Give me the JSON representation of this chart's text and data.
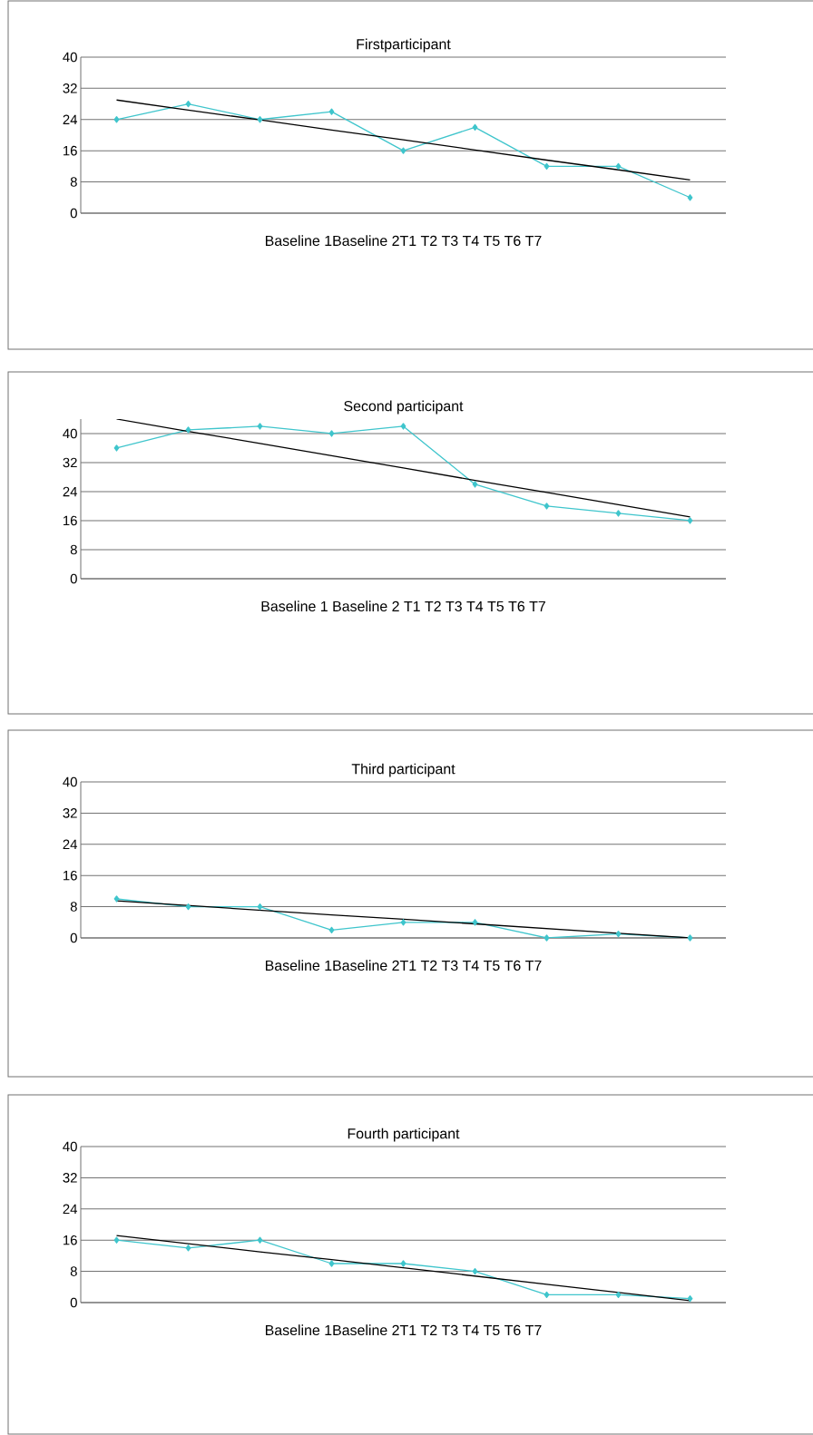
{
  "chart_data": [
    {
      "type": "line",
      "title": "Firstparticipant",
      "xlabel": "Baseline 1Baseline 2T1 T2 T3 T4 T5 T6 T7",
      "categories": [
        null,
        null,
        null,
        null,
        null,
        null,
        null,
        null,
        null
      ],
      "ylim": [
        0,
        40
      ],
      "yticks": [
        0,
        8,
        16,
        24,
        32,
        40
      ],
      "grid": "y",
      "marker": "diamond",
      "series": [
        {
          "color": "#3fc5cc",
          "values": [
            24,
            28,
            24,
            26,
            16,
            22,
            12,
            12,
            4
          ]
        },
        {
          "type": "line",
          "marker": "none",
          "color": "#000000",
          "values": [
            29,
            26.4,
            23.9,
            21.3,
            18.8,
            16.2,
            13.6,
            11.1,
            8.5
          ]
        }
      ]
    },
    {
      "type": "line",
      "title": "Second participant",
      "xlabel": "Baseline 1 Baseline 2 T1 T2 T3 T4 T5 T6 T7",
      "categories": [
        null,
        null,
        null,
        null,
        null,
        null,
        null,
        null,
        null
      ],
      "ylim": [
        0,
        44
      ],
      "yticks": [
        0,
        8,
        16,
        24,
        32,
        40
      ],
      "grid": "y",
      "marker": "diamond",
      "series": [
        {
          "color": "#3fc5cc",
          "values": [
            36,
            41,
            42,
            40,
            42,
            26,
            20,
            18,
            16
          ]
        },
        {
          "type": "line",
          "marker": "none",
          "color": "#000000",
          "values": [
            44,
            40.6,
            37.3,
            33.9,
            30.5,
            27.1,
            23.8,
            20.4,
            17
          ]
        }
      ]
    },
    {
      "type": "line",
      "title": "Third participant",
      "xlabel": "Baseline 1Baseline 2T1 T2 T3 T4 T5 T6 T7",
      "categories": [
        null,
        null,
        null,
        null,
        null,
        null,
        null,
        null,
        null
      ],
      "ylim": [
        0,
        40
      ],
      "yticks": [
        0,
        8,
        16,
        24,
        32,
        40
      ],
      "grid": "y",
      "marker": "diamond",
      "series": [
        {
          "color": "#3fc5cc",
          "values": [
            10,
            8,
            8,
            2,
            4,
            4,
            0,
            1,
            0
          ]
        },
        {
          "type": "line",
          "marker": "none",
          "color": "#000000",
          "values": [
            9.5,
            8.3,
            7.1,
            5.9,
            4.8,
            3.6,
            2.4,
            1.2,
            0
          ]
        }
      ]
    },
    {
      "type": "line",
      "title": "Fourth participant",
      "xlabel": "Baseline 1Baseline 2T1 T2 T3 T4 T5 T6 T7",
      "categories": [
        null,
        null,
        null,
        null,
        null,
        null,
        null,
        null,
        null
      ],
      "ylim": [
        0,
        40
      ],
      "yticks": [
        0,
        8,
        16,
        24,
        32,
        40
      ],
      "grid": "y",
      "marker": "diamond",
      "series": [
        {
          "color": "#3fc5cc",
          "values": [
            16,
            14,
            16,
            10,
            10,
            8,
            2,
            2,
            1
          ]
        },
        {
          "type": "line",
          "marker": "none",
          "color": "#000000",
          "values": [
            17.2,
            15.1,
            13.0,
            11.0,
            8.9,
            6.8,
            4.7,
            2.6,
            0.5
          ]
        }
      ]
    }
  ]
}
